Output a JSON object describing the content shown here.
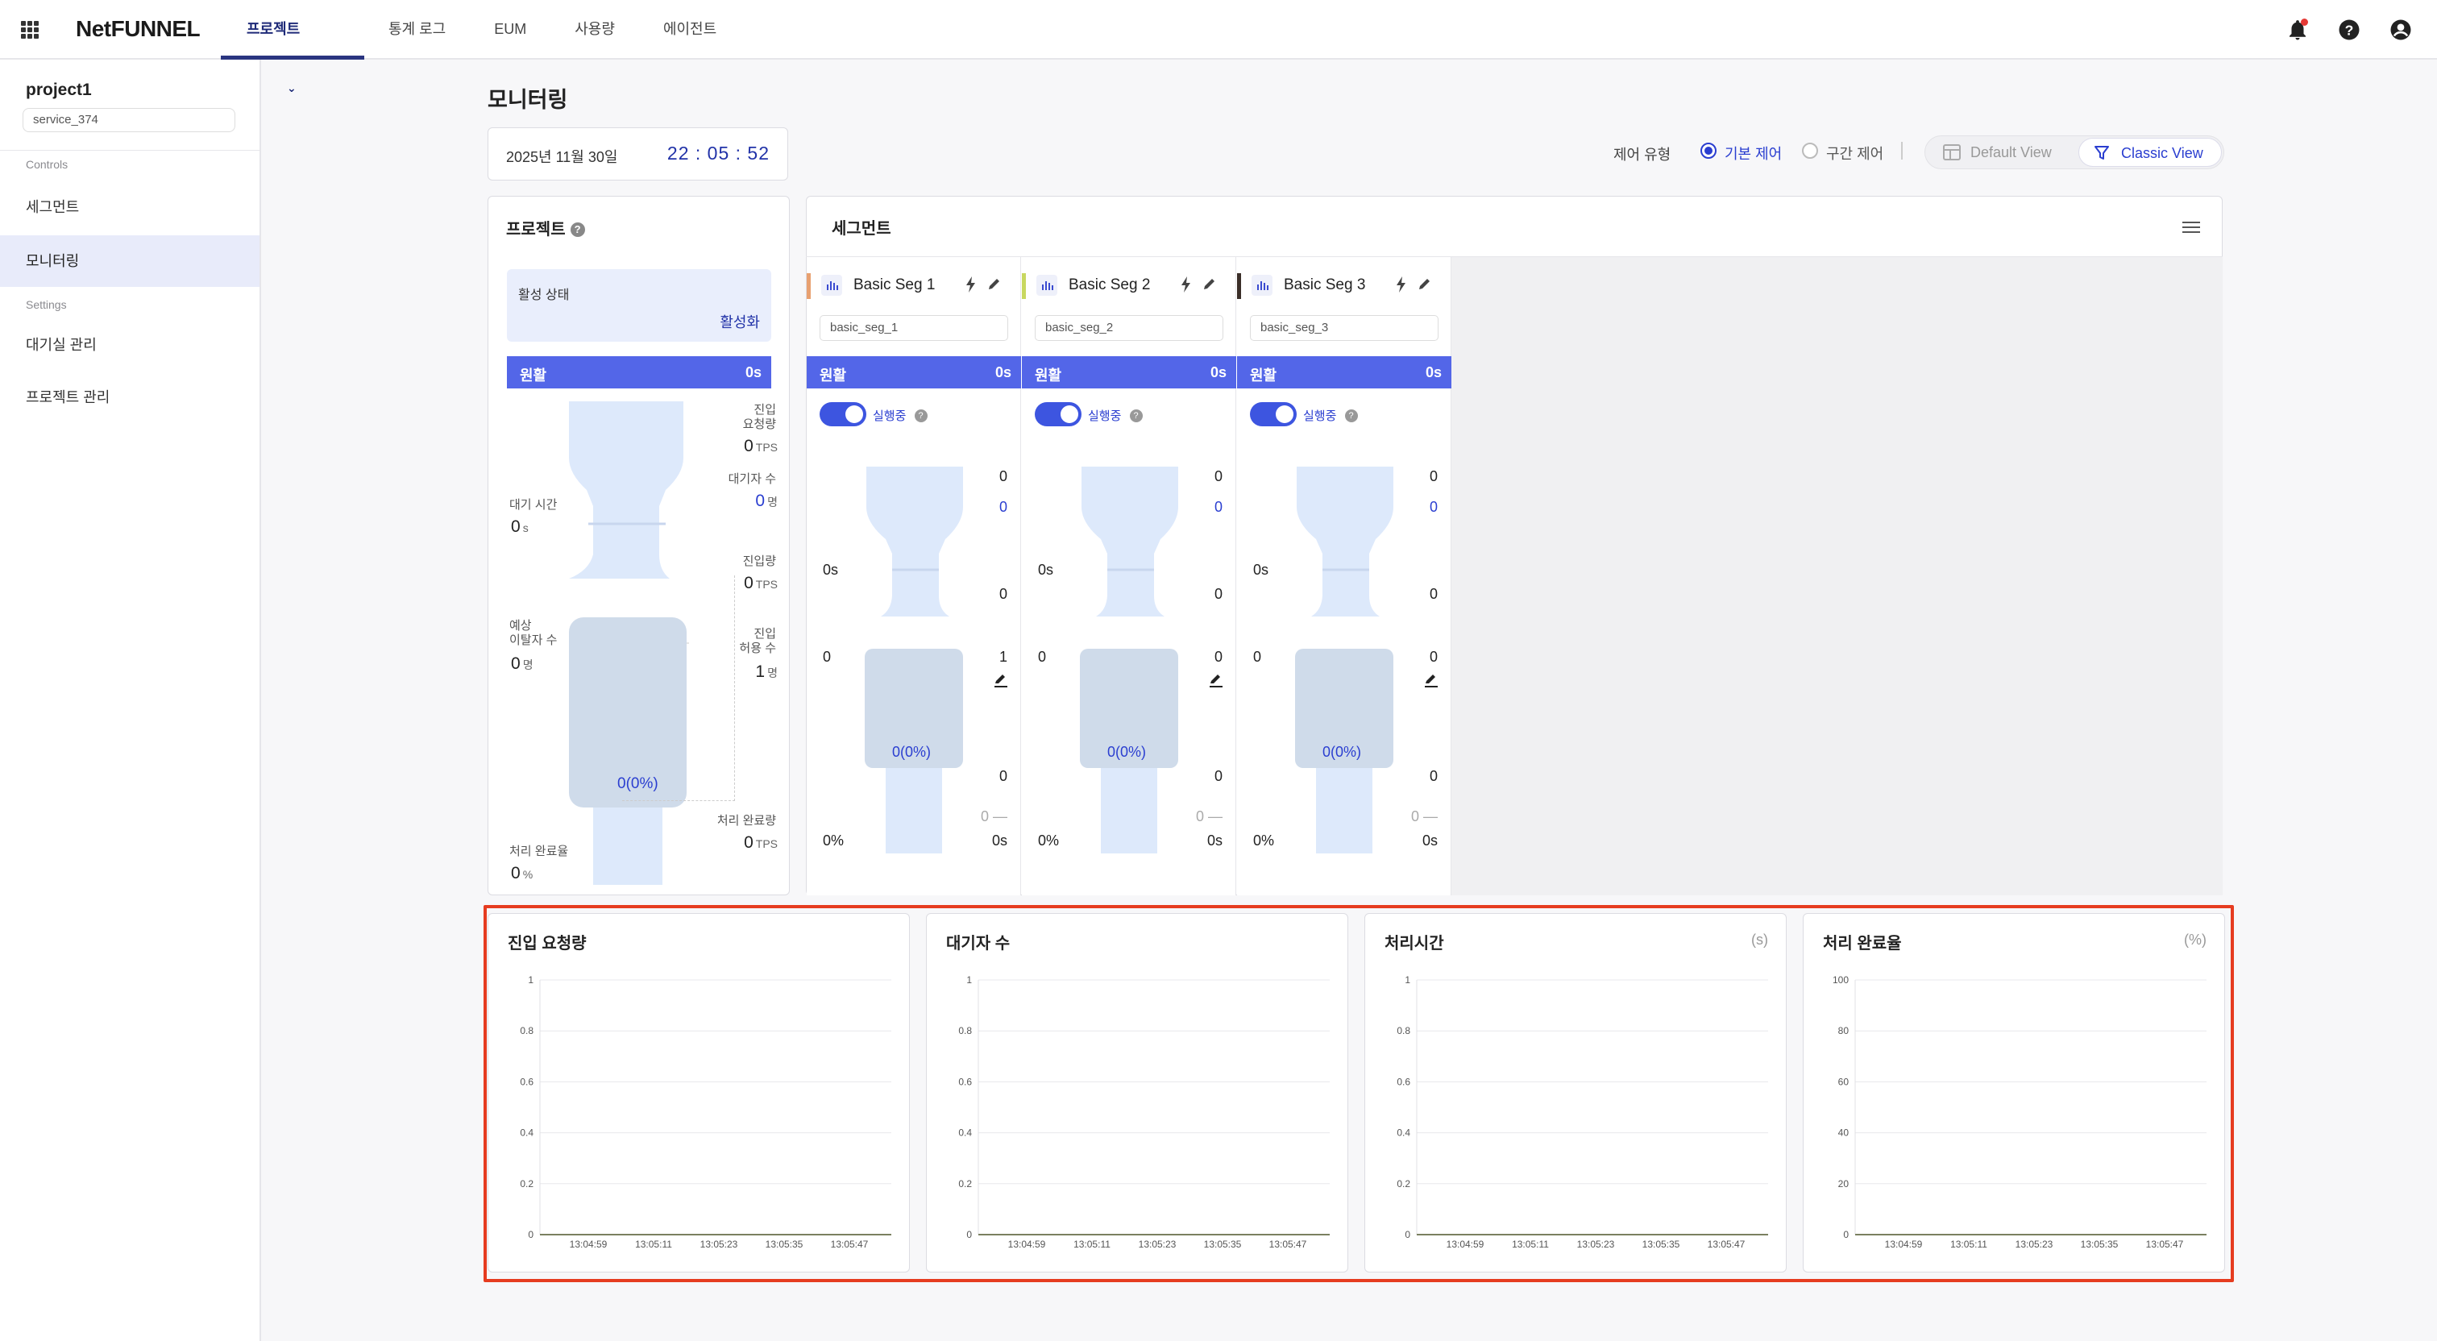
{
  "topbar": {
    "logo": "NetFUNNEL",
    "nav": [
      "프로젝트",
      "통계 로그",
      "EUM",
      "사용량",
      "에이전트"
    ],
    "icons": [
      "bell-icon",
      "help-icon",
      "account-icon"
    ]
  },
  "sidebar": {
    "project_name": "project1",
    "service": "service_374",
    "controls_section": "Controls",
    "controls_items": [
      "세그먼트",
      "모니터링"
    ],
    "settings_section": "Settings",
    "settings_items": [
      "대기실 관리",
      "프로젝트 관리"
    ]
  },
  "main": {
    "title": "모니터링",
    "date": "2025년 11월 30일",
    "time": "22 : 05 : 52",
    "control_type_label": "제어 유형",
    "control_basic": "기본 제어",
    "control_section": "구간 제어",
    "view_default": "Default View",
    "view_classic": "Classic View"
  },
  "project_panel": {
    "title": "프로젝트",
    "status_label": "활성 상태",
    "status_value": "활성화",
    "bar_label": "원활",
    "bar_value": "0s",
    "entry_request_label_1": "진입",
    "entry_request_label_2": "요청량",
    "entry_request_value": "0",
    "waiting_label": "대기자 수",
    "waiting_value": "0",
    "wait_time_label": "대기 시간",
    "wait_time_value": "0",
    "entry_amount_label": "진입량",
    "entry_amount_value": "0",
    "expected_leave_label_1": "예상",
    "expected_leave_label_2": "이탈자 수",
    "expected_leave_value": "0",
    "allowed_label_1": "진입",
    "allowed_label_2": "허용 수",
    "allowed_value": "1",
    "ratio": "0(0%)",
    "done_amount_label": "처리 완료량",
    "done_amount_value": "0",
    "done_rate_label": "처리 완료율",
    "done_rate_value": "0",
    "unit_tps": "TPS",
    "unit_person": "명",
    "unit_s": "s",
    "unit_pct": "%"
  },
  "segment_panel": {
    "title": "세그먼트",
    "segments": [
      {
        "name": "Basic Seg 1",
        "id": "basic_seg_1",
        "color": "#e8a070",
        "bar_label": "원활",
        "bar_value": "0s",
        "run_label": "실행중",
        "v1": "0",
        "v2": "0",
        "wait": "0s",
        "v3": "0",
        "left_mid": "0",
        "v4": "1",
        "ratio": "0(0%)",
        "v5": "0",
        "v6": "0 —",
        "pct": "0%",
        "sec": "0s"
      },
      {
        "name": "Basic Seg 2",
        "id": "basic_seg_2",
        "color": "#c8d860",
        "bar_label": "원활",
        "bar_value": "0s",
        "run_label": "실행중",
        "v1": "0",
        "v2": "0",
        "wait": "0s",
        "v3": "0",
        "left_mid": "0",
        "v4": "0",
        "ratio": "0(0%)",
        "v5": "0",
        "v6": "0 —",
        "pct": "0%",
        "sec": "0s"
      },
      {
        "name": "Basic Seg 3",
        "id": "basic_seg_3",
        "color": "#3a2e28",
        "bar_label": "원활",
        "bar_value": "0s",
        "run_label": "실행중",
        "v1": "0",
        "v2": "0",
        "wait": "0s",
        "v3": "0",
        "left_mid": "0",
        "v4": "0",
        "ratio": "0(0%)",
        "v5": "0",
        "v6": "0 —",
        "pct": "0%",
        "sec": "0s"
      }
    ]
  },
  "chart_data": [
    {
      "type": "line",
      "title": "진입 요청량",
      "unit": "",
      "x": [
        "13:04:59",
        "13:05:11",
        "13:05:23",
        "13:05:35",
        "13:05:47"
      ],
      "ylim": [
        0,
        1
      ],
      "yticks": [
        "1",
        "0.8",
        "0.6",
        "0.4",
        "0.2",
        "0"
      ],
      "series": [
        {
          "values": [
            0,
            0,
            0,
            0,
            0
          ]
        }
      ]
    },
    {
      "type": "line",
      "title": "대기자 수",
      "unit": "",
      "x": [
        "13:04:59",
        "13:05:11",
        "13:05:23",
        "13:05:35",
        "13:05:47"
      ],
      "ylim": [
        0,
        1
      ],
      "yticks": [
        "1",
        "0.8",
        "0.6",
        "0.4",
        "0.2",
        "0"
      ],
      "series": [
        {
          "values": [
            0,
            0,
            0,
            0,
            0
          ]
        }
      ]
    },
    {
      "type": "line",
      "title": "처리시간",
      "unit": "(s)",
      "x": [
        "13:04:59",
        "13:05:11",
        "13:05:23",
        "13:05:35",
        "13:05:47"
      ],
      "ylim": [
        0,
        1
      ],
      "yticks": [
        "1",
        "0.8",
        "0.6",
        "0.4",
        "0.2",
        "0"
      ],
      "series": [
        {
          "values": [
            0,
            0,
            0,
            0,
            0
          ]
        }
      ]
    },
    {
      "type": "line",
      "title": "처리 완료율",
      "unit": "(%)",
      "x": [
        "13:04:59",
        "13:05:11",
        "13:05:23",
        "13:05:35",
        "13:05:47"
      ],
      "ylim": [
        0,
        100
      ],
      "yticks": [
        "100",
        "80",
        "60",
        "40",
        "20",
        "0"
      ],
      "series": [
        {
          "values": [
            0,
            0,
            0,
            0,
            0
          ]
        }
      ]
    }
  ],
  "colors": {
    "accent": "#2a3ed0",
    "bar": "#5366e8",
    "highlight": "#e63c20",
    "line": "#7a8060"
  }
}
